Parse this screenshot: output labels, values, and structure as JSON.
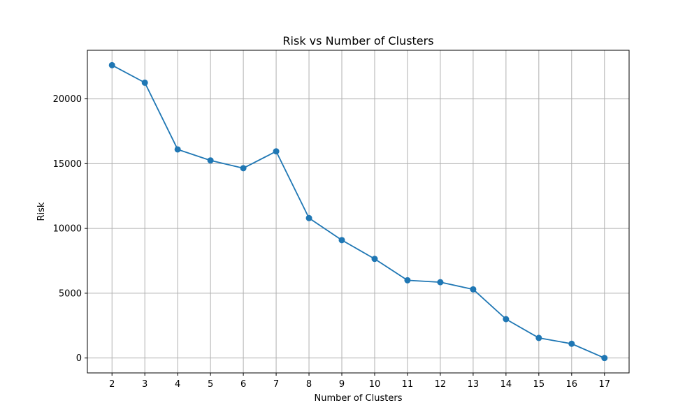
{
  "chart_data": {
    "type": "line",
    "title": "Risk vs Number of Clusters",
    "xlabel": "Number of Clusters",
    "ylabel": "Risk",
    "x": [
      2,
      3,
      4,
      5,
      6,
      7,
      8,
      9,
      10,
      11,
      12,
      13,
      14,
      15,
      16,
      17
    ],
    "series": [
      {
        "values": [
          22600,
          21250,
          16100,
          15250,
          14650,
          15950,
          10800,
          9100,
          7650,
          6000,
          5850,
          5300,
          3000,
          1550,
          1100,
          0
        ]
      }
    ],
    "xticks": [
      "2",
      "3",
      "4",
      "5",
      "6",
      "7",
      "8",
      "9",
      "10",
      "11",
      "12",
      "13",
      "14",
      "15",
      "16",
      "17"
    ],
    "yticks": [
      0,
      5000,
      10000,
      15000,
      20000
    ],
    "ytick_labels": [
      "0",
      "5000",
      "10000",
      "15000",
      "20000"
    ],
    "xlim": [
      1.25,
      17.75
    ],
    "ylim": [
      -1150,
      23750
    ],
    "grid": true,
    "marker": "circle",
    "line_color": "#1f77b4",
    "grid_color": "#b0b0b0"
  }
}
